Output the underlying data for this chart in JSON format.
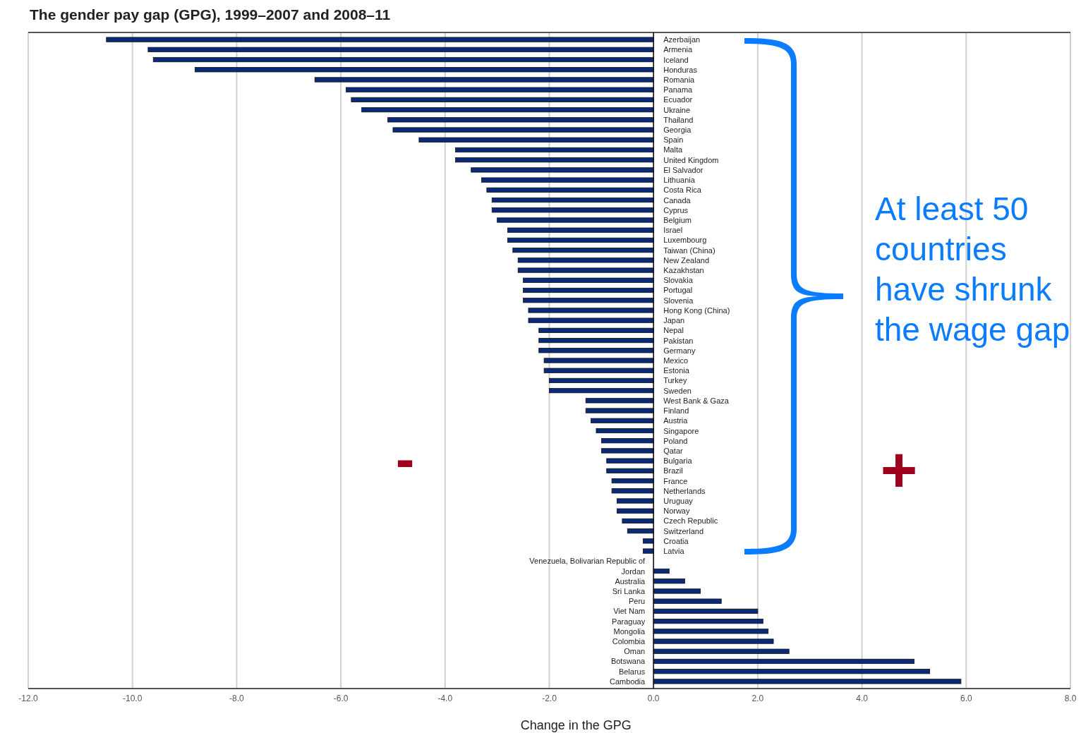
{
  "chart_data": {
    "type": "bar",
    "orientation": "horizontal",
    "title": "The gender pay gap (GPG), 1999–2007 and 2008–11",
    "xlabel": "Change in the GPG",
    "categories": [
      "Azerbaijan",
      "Armenia",
      "Iceland",
      "Honduras",
      "Romania",
      "Panama",
      "Ecuador",
      "Ukraine",
      "Thailand",
      "Georgia",
      "Spain",
      "Malta",
      "United Kingdom",
      "El Salvador",
      "Lithuania",
      "Costa Rica",
      "Canada",
      "Cyprus",
      "Belgium",
      "Israel",
      "Luxembourg",
      "Taiwan (China)",
      "New Zealand",
      "Kazakhstan",
      "Slovakia",
      "Portugal",
      "Slovenia",
      "Hong Kong (China)",
      "Japan",
      "Nepal",
      "Pakistan",
      "Germany",
      "Mexico",
      "Estonia",
      "Turkey",
      "Sweden",
      "West Bank & Gaza",
      "Finland",
      "Austria",
      "Singapore",
      "Poland",
      "Qatar",
      "Bulgaria",
      "Brazil",
      "France",
      "Netherlands",
      "Uruguay",
      "Norway",
      "Czech Republic",
      "Switzerland",
      "Croatia",
      "Latvia",
      "Venezuela, Bolivarian Republic of",
      "Jordan",
      "Australia",
      "Sri Lanka",
      "Peru",
      "Viet Nam",
      "Paraguay",
      "Mongolia",
      "Colombia",
      "Oman",
      "Botswana",
      "Belarus",
      "Cambodia"
    ],
    "values": [
      -10.5,
      -9.7,
      -9.6,
      -8.8,
      -6.5,
      -5.9,
      -5.8,
      -5.6,
      -5.1,
      -5.0,
      -4.5,
      -3.8,
      -3.8,
      -3.5,
      -3.3,
      -3.2,
      -3.1,
      -3.1,
      -3.0,
      -2.8,
      -2.8,
      -2.7,
      -2.6,
      -2.6,
      -2.5,
      -2.5,
      -2.5,
      -2.4,
      -2.4,
      -2.2,
      -2.2,
      -2.2,
      -2.1,
      -2.1,
      -2.0,
      -2.0,
      -1.3,
      -1.3,
      -1.2,
      -1.1,
      -1.0,
      -1.0,
      -0.9,
      -0.9,
      -0.8,
      -0.8,
      -0.7,
      -0.7,
      -0.6,
      -0.5,
      -0.2,
      -0.2,
      null,
      0.3,
      0.6,
      0.9,
      1.3,
      2.0,
      2.1,
      2.2,
      2.3,
      2.6,
      5.0,
      5.3,
      5.9
    ],
    "color": "#0a2a78",
    "xlim": [
      -12,
      8
    ],
    "xticks": [
      {
        "value": -12,
        "label": "-12.0"
      },
      {
        "value": -10,
        "label": "-10.0"
      },
      {
        "value": -8,
        "label": "-8.0"
      },
      {
        "value": -6,
        "label": "-6.0"
      },
      {
        "value": -4,
        "label": "-4.0"
      },
      {
        "value": -2,
        "label": "-2.0"
      },
      {
        "value": 0,
        "label": "0.0"
      },
      {
        "value": 2,
        "label": "2.0"
      },
      {
        "value": 4,
        "label": "4.0"
      },
      {
        "value": 6,
        "label": "6.0"
      },
      {
        "value": 8,
        "label": "8.0"
      }
    ],
    "grid": "x",
    "annotations": [
      "At least 50 countries have shrunk the wage gap",
      "-",
      "+"
    ]
  }
}
